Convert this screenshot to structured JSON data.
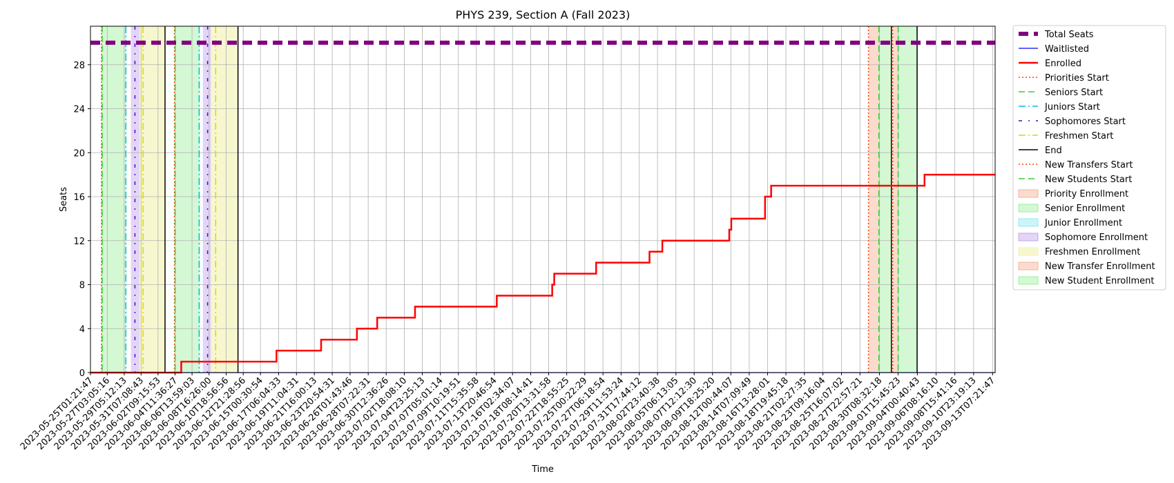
{
  "chart_data": {
    "type": "line",
    "title": "PHYS 239, Section A (Fall 2023)",
    "xlabel": "Time",
    "ylabel": "Seats",
    "x_is_date": true,
    "xlim": [
      "2023-05-25T01:21:47",
      "2023-09-13T15:00:00"
    ],
    "ylim": [
      0,
      31.5
    ],
    "yticks": [
      0,
      4,
      8,
      12,
      16,
      20,
      24,
      28
    ],
    "xticks": [
      "2023-05-25T01:21:47",
      "2023-05-27T03:05:16",
      "2023-05-29T05:12:13",
      "2023-05-31T07:08:43",
      "2023-06-02T09:15:53",
      "2023-06-04T11:36:27",
      "2023-06-06T13:59:03",
      "2023-06-08T16:26:00",
      "2023-06-10T18:56:56",
      "2023-06-12T21:28:56",
      "2023-06-15T00:30:54",
      "2023-06-17T06:04:33",
      "2023-06-19T11:04:31",
      "2023-06-21T16:00:13",
      "2023-06-23T20:54:31",
      "2023-06-26T01:43:46",
      "2023-06-28T07:22:31",
      "2023-06-30T12:36:26",
      "2023-07-02T18:08:10",
      "2023-07-04T23:25:13",
      "2023-07-07T05:01:14",
      "2023-07-09T10:19:51",
      "2023-07-11T15:35:58",
      "2023-07-13T20:46:54",
      "2023-07-16T02:34:07",
      "2023-07-18T08:14:41",
      "2023-07-20T13:31:58",
      "2023-07-22T18:55:25",
      "2023-07-25T00:22:29",
      "2023-07-27T06:18:54",
      "2023-07-29T11:53:24",
      "2023-07-31T17:44:12",
      "2023-08-02T23:40:38",
      "2023-08-05T06:13:05",
      "2023-08-07T12:12:30",
      "2023-08-09T18:25:20",
      "2023-08-12T00:44:07",
      "2023-08-14T07:09:49",
      "2023-08-16T13:28:01",
      "2023-08-18T19:45:18",
      "2023-08-21T02:27:35",
      "2023-08-23T09:16:04",
      "2023-08-25T16:07:02",
      "2023-08-27T22:57:21",
      "2023-08-30T08:32:18",
      "2023-09-01T15:45:23",
      "2023-09-04T00:40:43",
      "2023-09-06T08:16:10",
      "2023-09-08T15:41:16",
      "2023-09-10T23:19:13",
      "2023-09-13T07:21:47"
    ],
    "grid": true,
    "legend_position": "outside-right",
    "series": [
      {
        "name": "Total Seats",
        "color": "#800080",
        "style": "dashed-thick",
        "points": [
          [
            "2023-05-25T01:21:47",
            30
          ],
          [
            "2023-09-13T15:00:00",
            30
          ]
        ]
      },
      {
        "name": "Waitlisted",
        "color": "#0000ff",
        "style": "solid-thin",
        "points": [
          [
            "2023-05-25T01:21:47",
            0
          ],
          [
            "2023-09-13T15:00:00",
            0
          ]
        ]
      },
      {
        "name": "Enrolled",
        "color": "#ff0000",
        "style": "solid-thick",
        "step": true,
        "points": [
          [
            "2023-05-25T01:21:47",
            0
          ],
          [
            "2023-06-05T06:00:00",
            1
          ],
          [
            "2023-06-17T00:00:00",
            2
          ],
          [
            "2023-06-22T12:00:00",
            3
          ],
          [
            "2023-06-26T22:00:00",
            4
          ],
          [
            "2023-06-29T10:00:00",
            5
          ],
          [
            "2023-07-04T02:00:00",
            6
          ],
          [
            "2023-07-14T04:00:00",
            7
          ],
          [
            "2023-07-21T00:00:00",
            8
          ],
          [
            "2023-07-21T06:00:00",
            9
          ],
          [
            "2023-07-26T10:00:00",
            10
          ],
          [
            "2023-08-02T00:00:00",
            11
          ],
          [
            "2023-08-03T14:00:00",
            12
          ],
          [
            "2023-08-11T20:00:00",
            13
          ],
          [
            "2023-08-12T02:00:00",
            14
          ],
          [
            "2023-08-16T06:00:00",
            16
          ],
          [
            "2023-08-17T00:00:00",
            17
          ],
          [
            "2023-09-04T22:00:00",
            18
          ],
          [
            "2023-09-13T15:00:00",
            18
          ]
        ]
      }
    ],
    "events": [
      {
        "name": "Priorities Start",
        "color": "#ff4500",
        "style": "dotted",
        "times": [
          "2023-05-26T10:00:00",
          "2023-06-04T10:00:00",
          "2023-08-29T00:00:00"
        ]
      },
      {
        "name": "Seniors Start",
        "color": "#32cd32",
        "style": "dashed",
        "times": [
          "2023-05-26T12:00:00",
          "2023-06-04T12:00:00",
          "2023-08-30T07:00:00"
        ]
      },
      {
        "name": "Juniors Start",
        "color": "#00bfd8",
        "style": "dashdot",
        "times": [
          "2023-05-29T10:00:00",
          "2023-06-07T11:00:00"
        ]
      },
      {
        "name": "Sophomores Start",
        "color": "#5000d0",
        "style": "dashdot-sparse",
        "times": [
          "2023-05-30T13:00:00",
          "2023-06-08T12:00:00"
        ]
      },
      {
        "name": "Freshmen Start",
        "color": "#d8d800",
        "style": "dashdot",
        "times": [
          "2023-05-31T13:00:00",
          "2023-06-09T12:00:00"
        ]
      },
      {
        "name": "End",
        "color": "#000000",
        "style": "solid",
        "times": [
          "2023-06-03T06:00:00",
          "2023-06-12T06:00:00",
          "2023-08-31T20:00:00",
          "2023-09-04T00:00:00"
        ]
      },
      {
        "name": "New Transfers Start",
        "color": "#ff4500",
        "style": "dotted",
        "times": [
          "2023-09-01T00:00:00"
        ]
      },
      {
        "name": "New Students Start",
        "color": "#32cd32",
        "style": "dashed",
        "times": [
          "2023-09-01T16:00:00"
        ]
      }
    ],
    "spans": [
      {
        "name": "Priority Enrollment",
        "color": "#f4a582",
        "alpha": 0.4,
        "ranges": [
          [
            "2023-05-26T10:00:00",
            "2023-05-26T12:00:00"
          ],
          [
            "2023-06-04T10:00:00",
            "2023-06-04T12:00:00"
          ],
          [
            "2023-08-29T00:00:00",
            "2023-08-30T07:00:00"
          ]
        ]
      },
      {
        "name": "Senior Enrollment",
        "color": "#90ee90",
        "alpha": 0.4,
        "ranges": [
          [
            "2023-05-26T12:00:00",
            "2023-05-29T10:00:00"
          ],
          [
            "2023-06-04T12:00:00",
            "2023-06-07T11:00:00"
          ],
          [
            "2023-08-30T07:00:00",
            "2023-08-31T20:00:00"
          ]
        ]
      },
      {
        "name": "Junior Enrollment",
        "color": "#7fe5f0",
        "alpha": 0.4,
        "ranges": [
          [
            "2023-05-29T10:00:00",
            "2023-05-29T12:00:00"
          ],
          [
            "2023-06-07T11:00:00",
            "2023-06-07T14:00:00"
          ]
        ]
      },
      {
        "name": "Sophomore Enrollment",
        "color": "#b696ea",
        "alpha": 0.4,
        "ranges": [
          [
            "2023-05-30T01:00:00",
            "2023-05-31T03:00:00"
          ],
          [
            "2023-06-07T22:00:00",
            "2023-06-08T22:00:00"
          ]
        ]
      },
      {
        "name": "Freshmen Enrollment",
        "color": "#f0f0a0",
        "alpha": 0.5,
        "ranges": [
          [
            "2023-05-31T03:00:00",
            "2023-06-03T06:00:00"
          ],
          [
            "2023-06-08T22:00:00",
            "2023-06-12T06:00:00"
          ]
        ]
      },
      {
        "name": "New Transfer Enrollment",
        "color": "#f4a582",
        "alpha": 0.4,
        "ranges": [
          [
            "2023-09-01T00:00:00",
            "2023-09-01T16:00:00"
          ]
        ]
      },
      {
        "name": "New Student Enrollment",
        "color": "#90ee90",
        "alpha": 0.4,
        "ranges": [
          [
            "2023-09-01T16:00:00",
            "2023-09-04T00:00:00"
          ]
        ]
      }
    ],
    "legend": [
      "Total Seats",
      "Waitlisted",
      "Enrolled",
      "Priorities Start",
      "Seniors Start",
      "Juniors Start",
      "Sophomores Start",
      "Freshmen Start",
      "End",
      "New Transfers Start",
      "New Students Start",
      "Priority Enrollment",
      "Senior Enrollment",
      "Junior Enrollment",
      "Sophomore Enrollment",
      "Freshmen Enrollment",
      "New Transfer Enrollment",
      "New Student Enrollment"
    ]
  }
}
